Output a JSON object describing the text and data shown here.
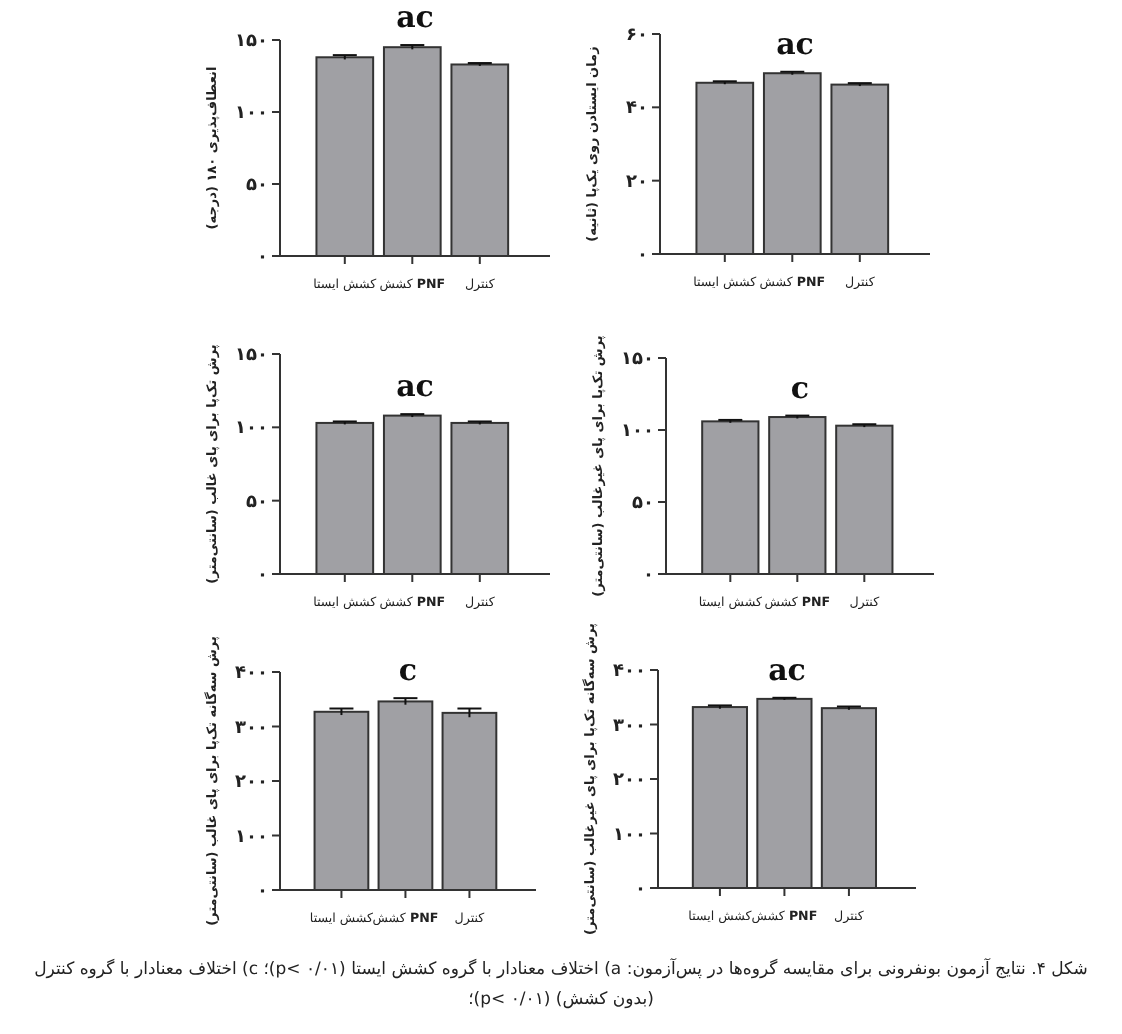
{
  "chart_data": [
    {
      "type": "bar",
      "categories": [
        "کشش ایستا",
        "کشش **PNF**",
        "کنترل"
      ],
      "values": [
        138,
        145,
        133
      ],
      "errors": [
        1.5,
        1.5,
        1
      ],
      "color": "#a0a0a4",
      "ylabel": "انعطاف‌پذیری ۱۸۰ (درجه)",
      "ylim": [
        0,
        150
      ],
      "yticks": [
        {
          "value": 0,
          "label": "۰"
        },
        {
          "value": 50,
          "label": "۵۰"
        },
        {
          "value": 100,
          "label": "۱۰۰"
        },
        {
          "value": 150,
          "label": "۱۵۰"
        }
      ],
      "annotations": [
        "ac"
      ]
    },
    {
      "type": "bar",
      "categories": [
        "کشش ایستا",
        "کشش **PNF**",
        "کنترل"
      ],
      "values": [
        46.7,
        49.3,
        46.2
      ],
      "errors": [
        0.4,
        0.4,
        0.4
      ],
      "color": "#a0a0a4",
      "ylabel": "زمان ایستادن روی یک‌پا (ثانیه)",
      "ylim": [
        0,
        60
      ],
      "yticks": [
        {
          "value": 0,
          "label": "۰"
        },
        {
          "value": 20,
          "label": "۲۰"
        },
        {
          "value": 40,
          "label": "۴۰"
        },
        {
          "value": 60,
          "label": "۶۰"
        }
      ],
      "annotations": [
        "ac"
      ]
    },
    {
      "type": "bar",
      "categories": [
        "کشش ایستا",
        "کشش **PNF**",
        "کنترل"
      ],
      "values": [
        103,
        108,
        103
      ],
      "errors": [
        1,
        1,
        1
      ],
      "color": "#a0a0a4",
      "ylabel": "پرش تک‌پا برای پای غالب (سانتی‌متر)",
      "ylim": [
        0,
        150
      ],
      "yticks": [
        {
          "value": 0,
          "label": "۰"
        },
        {
          "value": 50,
          "label": "۵۰"
        },
        {
          "value": 100,
          "label": "۱۰۰"
        },
        {
          "value": 150,
          "label": "۱۵۰"
        }
      ],
      "annotations": [
        "ac"
      ]
    },
    {
      "type": "bar",
      "categories": [
        "کشش ایستا",
        "کشش **PNF**",
        "کنترل"
      ],
      "values": [
        106,
        109,
        103
      ],
      "errors": [
        1,
        1,
        1
      ],
      "color": "#a0a0a4",
      "ylabel": "پرش تک‌پا برای پای غیرغالب (سانتی‌متر)",
      "ylim": [
        0,
        150
      ],
      "yticks": [
        {
          "value": 0,
          "label": "۰"
        },
        {
          "value": 50,
          "label": "۵۰"
        },
        {
          "value": 100,
          "label": "۱۰۰"
        },
        {
          "value": 150,
          "label": "۱۵۰"
        }
      ],
      "annotations": [
        "c"
      ]
    },
    {
      "type": "bar",
      "categories": [
        "کشش ایستا",
        "کشش **PNF**",
        "کنترل"
      ],
      "values": [
        327,
        346,
        325
      ],
      "errors": [
        6,
        6,
        8
      ],
      "color": "#a0a0a4",
      "ylabel": "پرش سه‌گانه تک‌پا برای پای غالب (سانتی‌متر)",
      "ylim": [
        0,
        400
      ],
      "yticks": [
        {
          "value": 0,
          "label": "۰"
        },
        {
          "value": 100,
          "label": "۱۰۰"
        },
        {
          "value": 200,
          "label": "۲۰۰"
        },
        {
          "value": 300,
          "label": "۳۰۰"
        },
        {
          "value": 400,
          "label": "۴۰۰"
        }
      ],
      "annotations": [
        "c"
      ]
    },
    {
      "type": "bar",
      "categories": [
        "کشش ایستا",
        "کشش **PNF**",
        "کنترل"
      ],
      "values": [
        332,
        347,
        330
      ],
      "errors": [
        3,
        2,
        3
      ],
      "color": "#a0a0a4",
      "ylabel": "پرش سه‌گانه تک‌پا برای پای غیرغالب (سانتی‌متر)",
      "ylim": [
        0,
        400
      ],
      "yticks": [
        {
          "value": 0,
          "label": "۰"
        },
        {
          "value": 100,
          "label": "۱۰۰"
        },
        {
          "value": 200,
          "label": "۲۰۰"
        },
        {
          "value": 300,
          "label": "۳۰۰"
        },
        {
          "value": 400,
          "label": "۴۰۰"
        }
      ],
      "annotations": [
        "ac",
        "شکل ۴. نتایج آزمون بونفرونی برای مقایسه گروه‌ها در پس‌آزمون: a) اختلاف معنادار با گروه کشش ایستا (p< ۰/۰۱)؛ c) اختلاف معنادار با گروه کنترل (بدون کشش) (p< ۰/۰۱)؛"
      ]
    }
  ]
}
